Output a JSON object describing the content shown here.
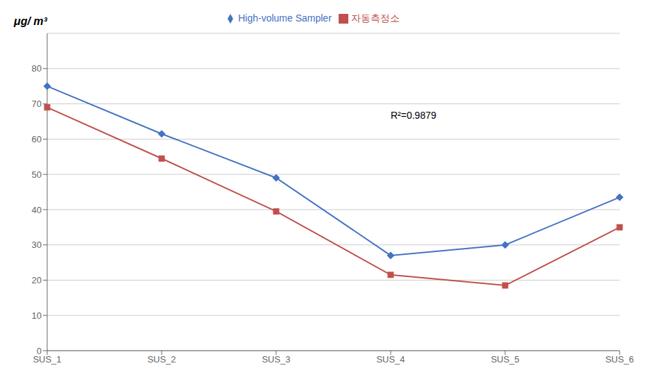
{
  "chart_data": {
    "type": "line",
    "ylabel": "μg/ m³",
    "categories": [
      "SUS_1",
      "SUS_2",
      "SUS_3",
      "SUS_4",
      "SUS_5",
      "SUS_6"
    ],
    "series": [
      {
        "name": "High-volume Sampler",
        "color": "#4472C4",
        "marker": "diamond",
        "values": [
          75,
          61.5,
          49,
          27,
          30,
          43.5
        ]
      },
      {
        "name": "자동측정소",
        "color": "#C0504D",
        "marker": "square",
        "values": [
          69,
          54.5,
          39.5,
          21.5,
          18.5,
          35
        ]
      }
    ],
    "ylim": [
      0,
      90
    ],
    "yticks": [
      0,
      10,
      20,
      30,
      40,
      50,
      60,
      70,
      80
    ],
    "grid": true,
    "legend": "top",
    "annotations": [
      "R²=0.9879"
    ]
  }
}
